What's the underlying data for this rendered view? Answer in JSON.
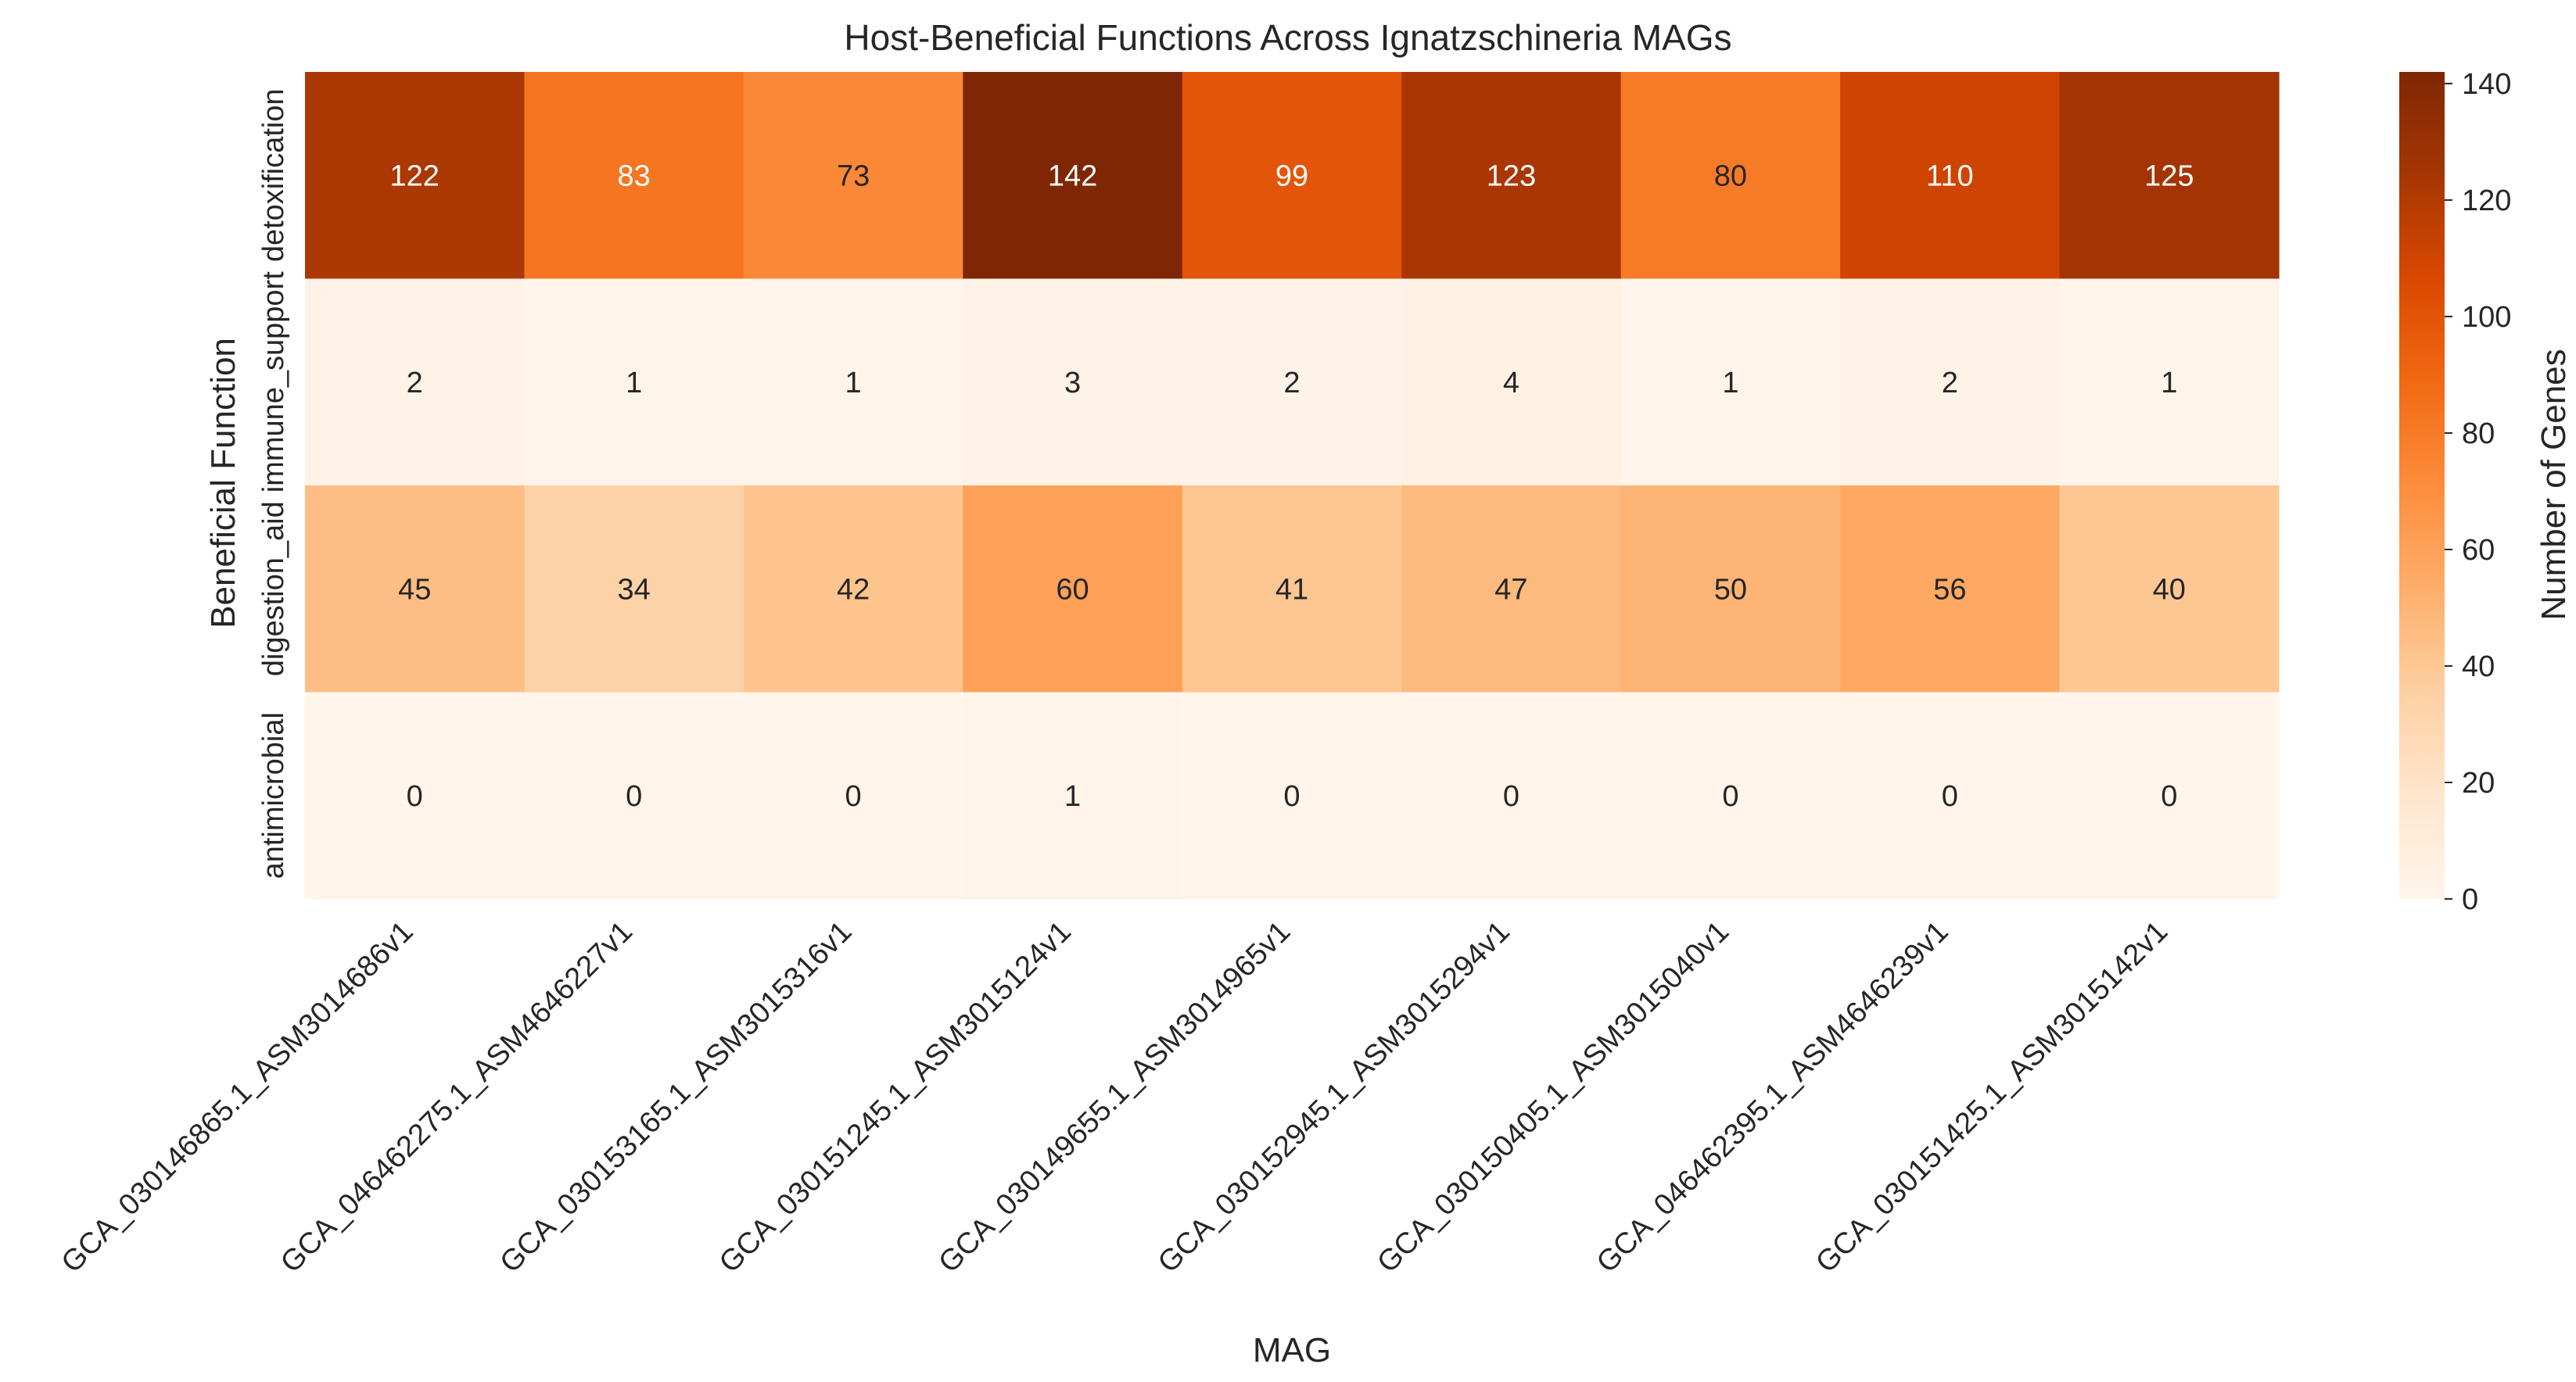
{
  "chart_data": {
    "type": "heatmap",
    "title": "Host-Beneficial Functions Across Ignatzschineria MAGs",
    "xlabel": "MAG",
    "ylabel": "Beneficial Function",
    "colorbar_label": "Number of Genes",
    "colormap": "Oranges",
    "color_range": [
      0,
      142
    ],
    "colorbar_ticks": [
      0,
      20,
      40,
      60,
      80,
      100,
      120,
      140
    ],
    "x_categories": [
      "GCA_030146865.1_ASM3014686v1",
      "GCA_046462275.1_ASM4646227v1",
      "GCA_030153165.1_ASM3015316v1",
      "GCA_030151245.1_ASM3015124v1",
      "GCA_030149655.1_ASM3014965v1",
      "GCA_030152945.1_ASM3015294v1",
      "GCA_030150405.1_ASM3015040v1",
      "GCA_046462395.1_ASM4646239v1",
      "GCA_030151425.1_ASM3015142v1"
    ],
    "y_categories": [
      "detoxification",
      "immune_support",
      "digestion_aid",
      "antimicrobial"
    ],
    "values": [
      [
        122,
        83,
        73,
        142,
        99,
        123,
        80,
        110,
        125
      ],
      [
        2,
        1,
        1,
        3,
        2,
        4,
        1,
        2,
        1
      ],
      [
        45,
        34,
        42,
        60,
        41,
        47,
        50,
        56,
        40
      ],
      [
        0,
        0,
        0,
        1,
        0,
        0,
        0,
        0,
        0
      ]
    ],
    "annotated": true,
    "grid": false
  }
}
